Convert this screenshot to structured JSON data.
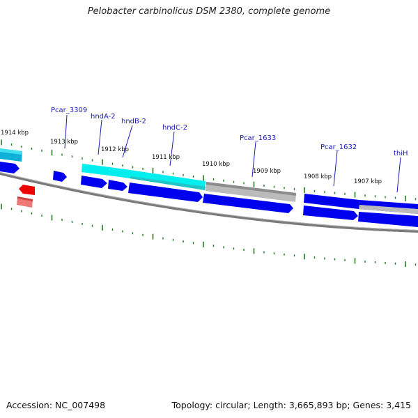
{
  "header": {
    "title": "Pelobacter carbinolicus DSM 2380, complete genome"
  },
  "footer": {
    "accession": "Accession: NC_007498",
    "topology": "Topology: circular; Length: 3,665,893 bp; Genes: 3,415"
  },
  "colors": {
    "backbone": "#7a7a7a",
    "forward_gene": "#0000ee",
    "hyd_gene": "#00eeee",
    "other_gene": "#bbbbbb",
    "rna_gene": "#ee0000",
    "rna_gene_light": "#ee7777",
    "tick": "#1e7a1e",
    "label_line": "#1a1ab8"
  },
  "kbp_labels": [
    {
      "id": "kbp-1914",
      "text": "1914 kbp"
    },
    {
      "id": "kbp-1913",
      "text": "1913 kbp"
    },
    {
      "id": "kbp-1912",
      "text": "1912 kbp"
    },
    {
      "id": "kbp-1911",
      "text": "1911 kbp"
    },
    {
      "id": "kbp-1910",
      "text": "1910 kbp"
    },
    {
      "id": "kbp-1909",
      "text": "1909 kbp"
    },
    {
      "id": "kbp-1908",
      "text": "1908 kbp"
    },
    {
      "id": "kbp-1907",
      "text": "1907 kbp"
    }
  ],
  "gene_labels": [
    {
      "id": "pcar3309",
      "text": "Pcar_3309"
    },
    {
      "id": "hnda2",
      "text": "hndA-2"
    },
    {
      "id": "hndb2",
      "text": "hndB-2"
    },
    {
      "id": "hndc2",
      "text": "hndC-2"
    },
    {
      "id": "pcar1633",
      "text": "Pcar_1633"
    },
    {
      "id": "pcar1632",
      "text": "Pcar_1632"
    },
    {
      "id": "thih",
      "text": "thiH"
    }
  ]
}
